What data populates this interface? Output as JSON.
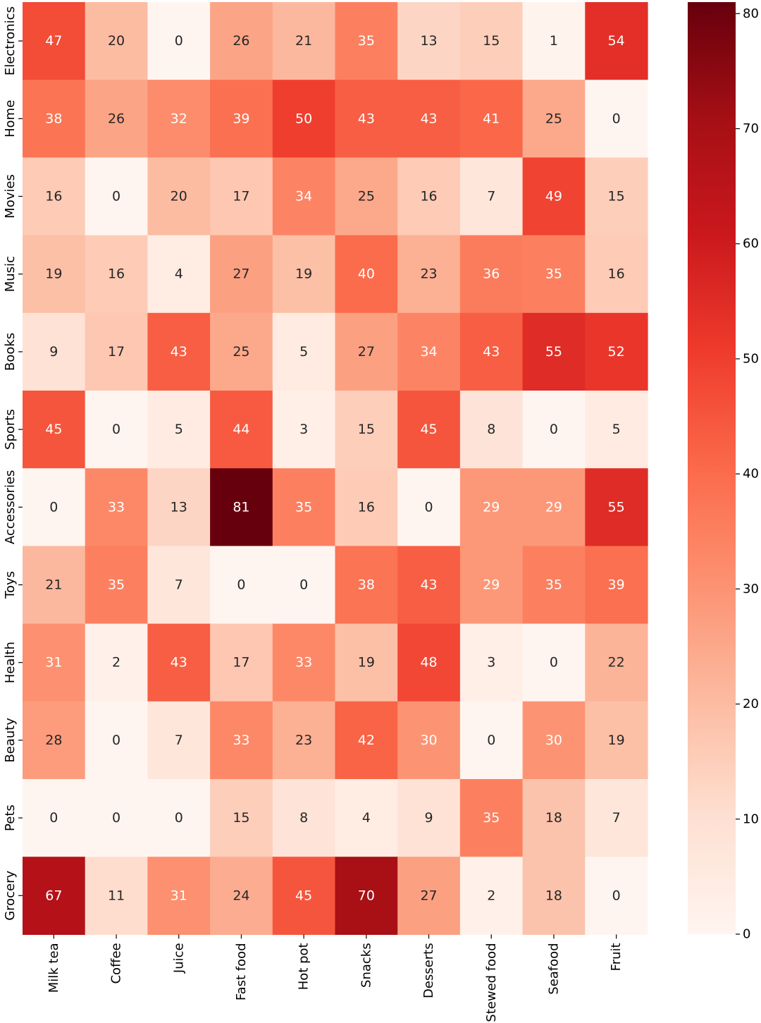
{
  "chart_data": {
    "type": "heatmap",
    "title": "",
    "xlabel": "",
    "ylabel": "",
    "x_categories": [
      "Milk tea",
      "Coffee",
      "Juice",
      "Fast food",
      "Hot pot",
      "Snacks",
      "Desserts",
      "Stewed food",
      "Seafood",
      "Fruit"
    ],
    "y_categories": [
      "Electronics",
      "Home",
      "Movies",
      "Music",
      "Books",
      "Sports",
      "Accessories",
      "Toys",
      "Health",
      "Beauty",
      "Pets",
      "Grocery"
    ],
    "values": [
      [
        47,
        20,
        0,
        26,
        21,
        35,
        13,
        15,
        1,
        54
      ],
      [
        38,
        26,
        32,
        39,
        50,
        43,
        43,
        41,
        25,
        0
      ],
      [
        16,
        0,
        20,
        17,
        34,
        25,
        16,
        7,
        49,
        15
      ],
      [
        19,
        16,
        4,
        27,
        19,
        40,
        23,
        36,
        35,
        16
      ],
      [
        9,
        17,
        43,
        25,
        5,
        27,
        34,
        43,
        55,
        52
      ],
      [
        45,
        0,
        5,
        44,
        3,
        15,
        45,
        8,
        0,
        5
      ],
      [
        0,
        33,
        13,
        81,
        35,
        16,
        0,
        29,
        29,
        55
      ],
      [
        21,
        35,
        7,
        0,
        0,
        38,
        43,
        29,
        35,
        39
      ],
      [
        31,
        2,
        43,
        17,
        33,
        19,
        48,
        3,
        0,
        22
      ],
      [
        28,
        0,
        7,
        33,
        23,
        42,
        30,
        0,
        30,
        19
      ],
      [
        0,
        0,
        0,
        15,
        8,
        4,
        9,
        35,
        18,
        7
      ],
      [
        67,
        11,
        31,
        24,
        45,
        70,
        27,
        2,
        18,
        0
      ]
    ],
    "colormap": "Reds",
    "colormap_stops": [
      "#fff5f0",
      "#fee0d2",
      "#fcbba1",
      "#fc9272",
      "#fb6a4a",
      "#ef3b2c",
      "#cb181d",
      "#a50f15",
      "#67000d"
    ],
    "vmin": 0,
    "vmax": 81,
    "colorbar_ticks": [
      0,
      10,
      20,
      30,
      40,
      50,
      60,
      70,
      80
    ],
    "annotation_color_light": "#ffffff",
    "annotation_color_dark": "#262626"
  }
}
